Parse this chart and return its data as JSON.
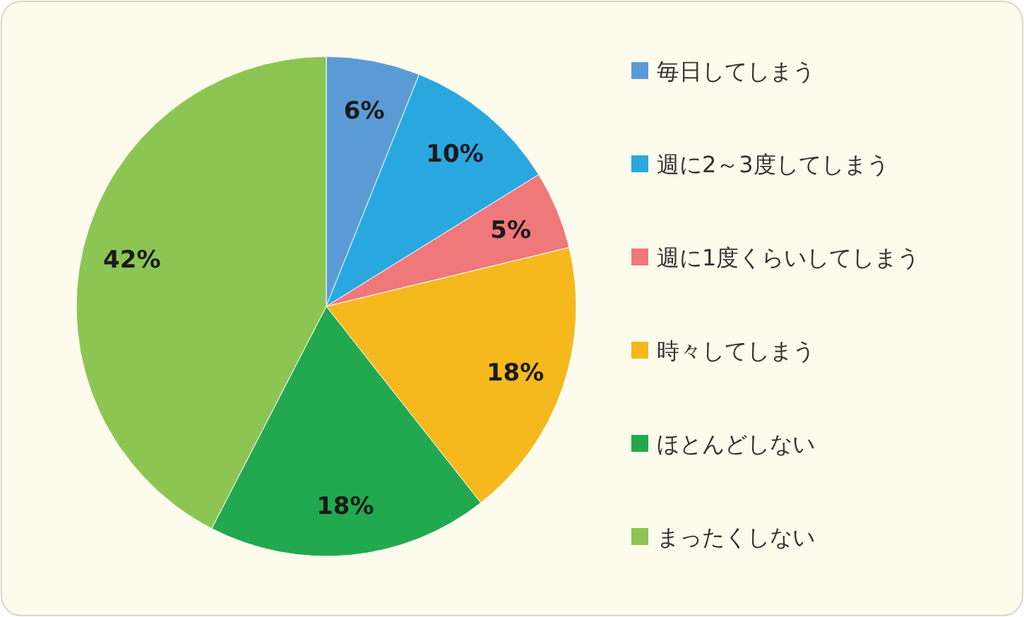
{
  "chart_data": {
    "type": "pie",
    "categories": [
      "毎日してしまう",
      "週に2～3度してしまう",
      "週に1度くらいしてしまう",
      "時々してしまう",
      "ほとんどしない",
      "まったくしない"
    ],
    "values": [
      6,
      10,
      5,
      18,
      18,
      42
    ],
    "value_labels": [
      "6%",
      "10%",
      "5%",
      "18%",
      "18%",
      "42%"
    ],
    "colors": [
      "#5b9bd5",
      "#29a8e0",
      "#ef787b",
      "#f5b91e",
      "#22a84f",
      "#8dc553"
    ],
    "legend": "right"
  }
}
